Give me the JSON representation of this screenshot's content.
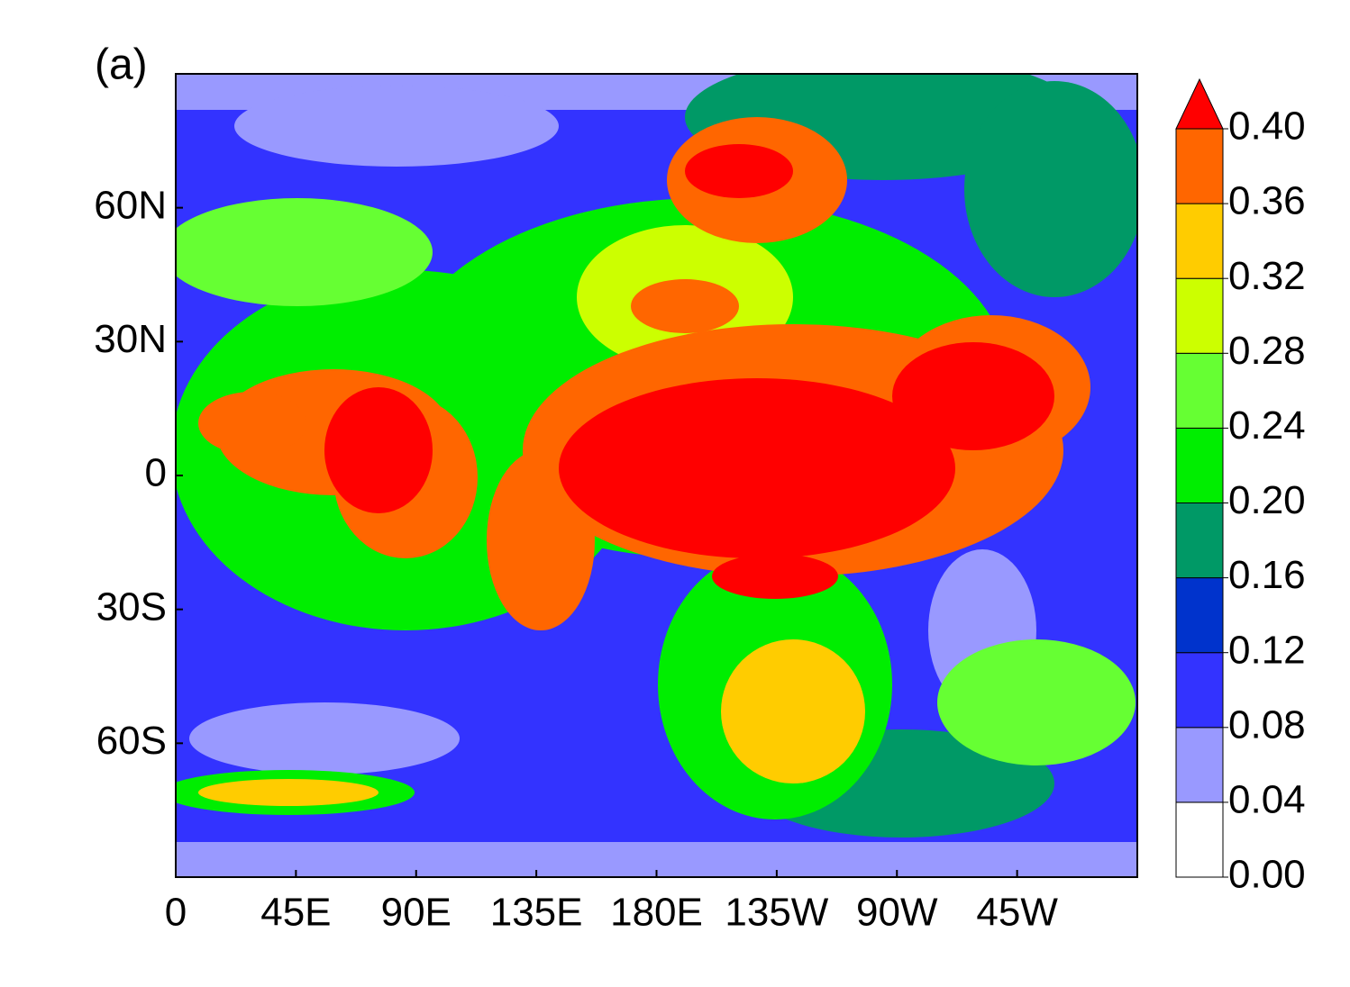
{
  "panel_label": "(a)",
  "map": {
    "xlim": [
      0,
      360
    ],
    "ylim": [
      -90,
      90
    ],
    "xticks": [
      0,
      {
        "value": 45,
        "label": "45E"
      },
      {
        "value": 90,
        "label": "90E"
      },
      {
        "value": 135,
        "label": "135E"
      },
      {
        "value": 180,
        "label": "180E"
      },
      {
        "value": 225,
        "label": "135W"
      },
      {
        "value": 270,
        "label": "90W"
      },
      {
        "value": 315,
        "label": "45W"
      }
    ],
    "yticks": [
      {
        "value": 60,
        "label": "60N"
      },
      {
        "value": 30,
        "label": "30N"
      },
      0,
      {
        "value": -30,
        "label": "30S"
      },
      {
        "value": -60,
        "label": "60S"
      }
    ]
  },
  "colorbar": {
    "ticks": [
      {
        "value": 0,
        "label": "0.00"
      },
      {
        "value": 0.04,
        "label": "0.04"
      },
      {
        "value": 0.08,
        "label": "0.08"
      },
      {
        "value": 0.12,
        "label": "0.12"
      },
      {
        "value": 0.16,
        "label": "0.16"
      },
      {
        "value": 0.2,
        "label": "0.20"
      },
      {
        "value": 0.24,
        "label": "0.24"
      },
      {
        "value": 0.28,
        "label": "0.28"
      },
      {
        "value": 0.32,
        "label": "0.32"
      },
      {
        "value": 0.36,
        "label": "0.36"
      },
      {
        "value": 0.4,
        "label": "0.40"
      }
    ],
    "colors": [
      "#ffffff",
      "#9999ff",
      "#3333ff",
      "#0033cc",
      "#009966",
      "#00ee00",
      "#66ff33",
      "#ccff00",
      "#ffcc00",
      "#ff6600",
      "#ff0000"
    ],
    "extend": "max"
  }
}
